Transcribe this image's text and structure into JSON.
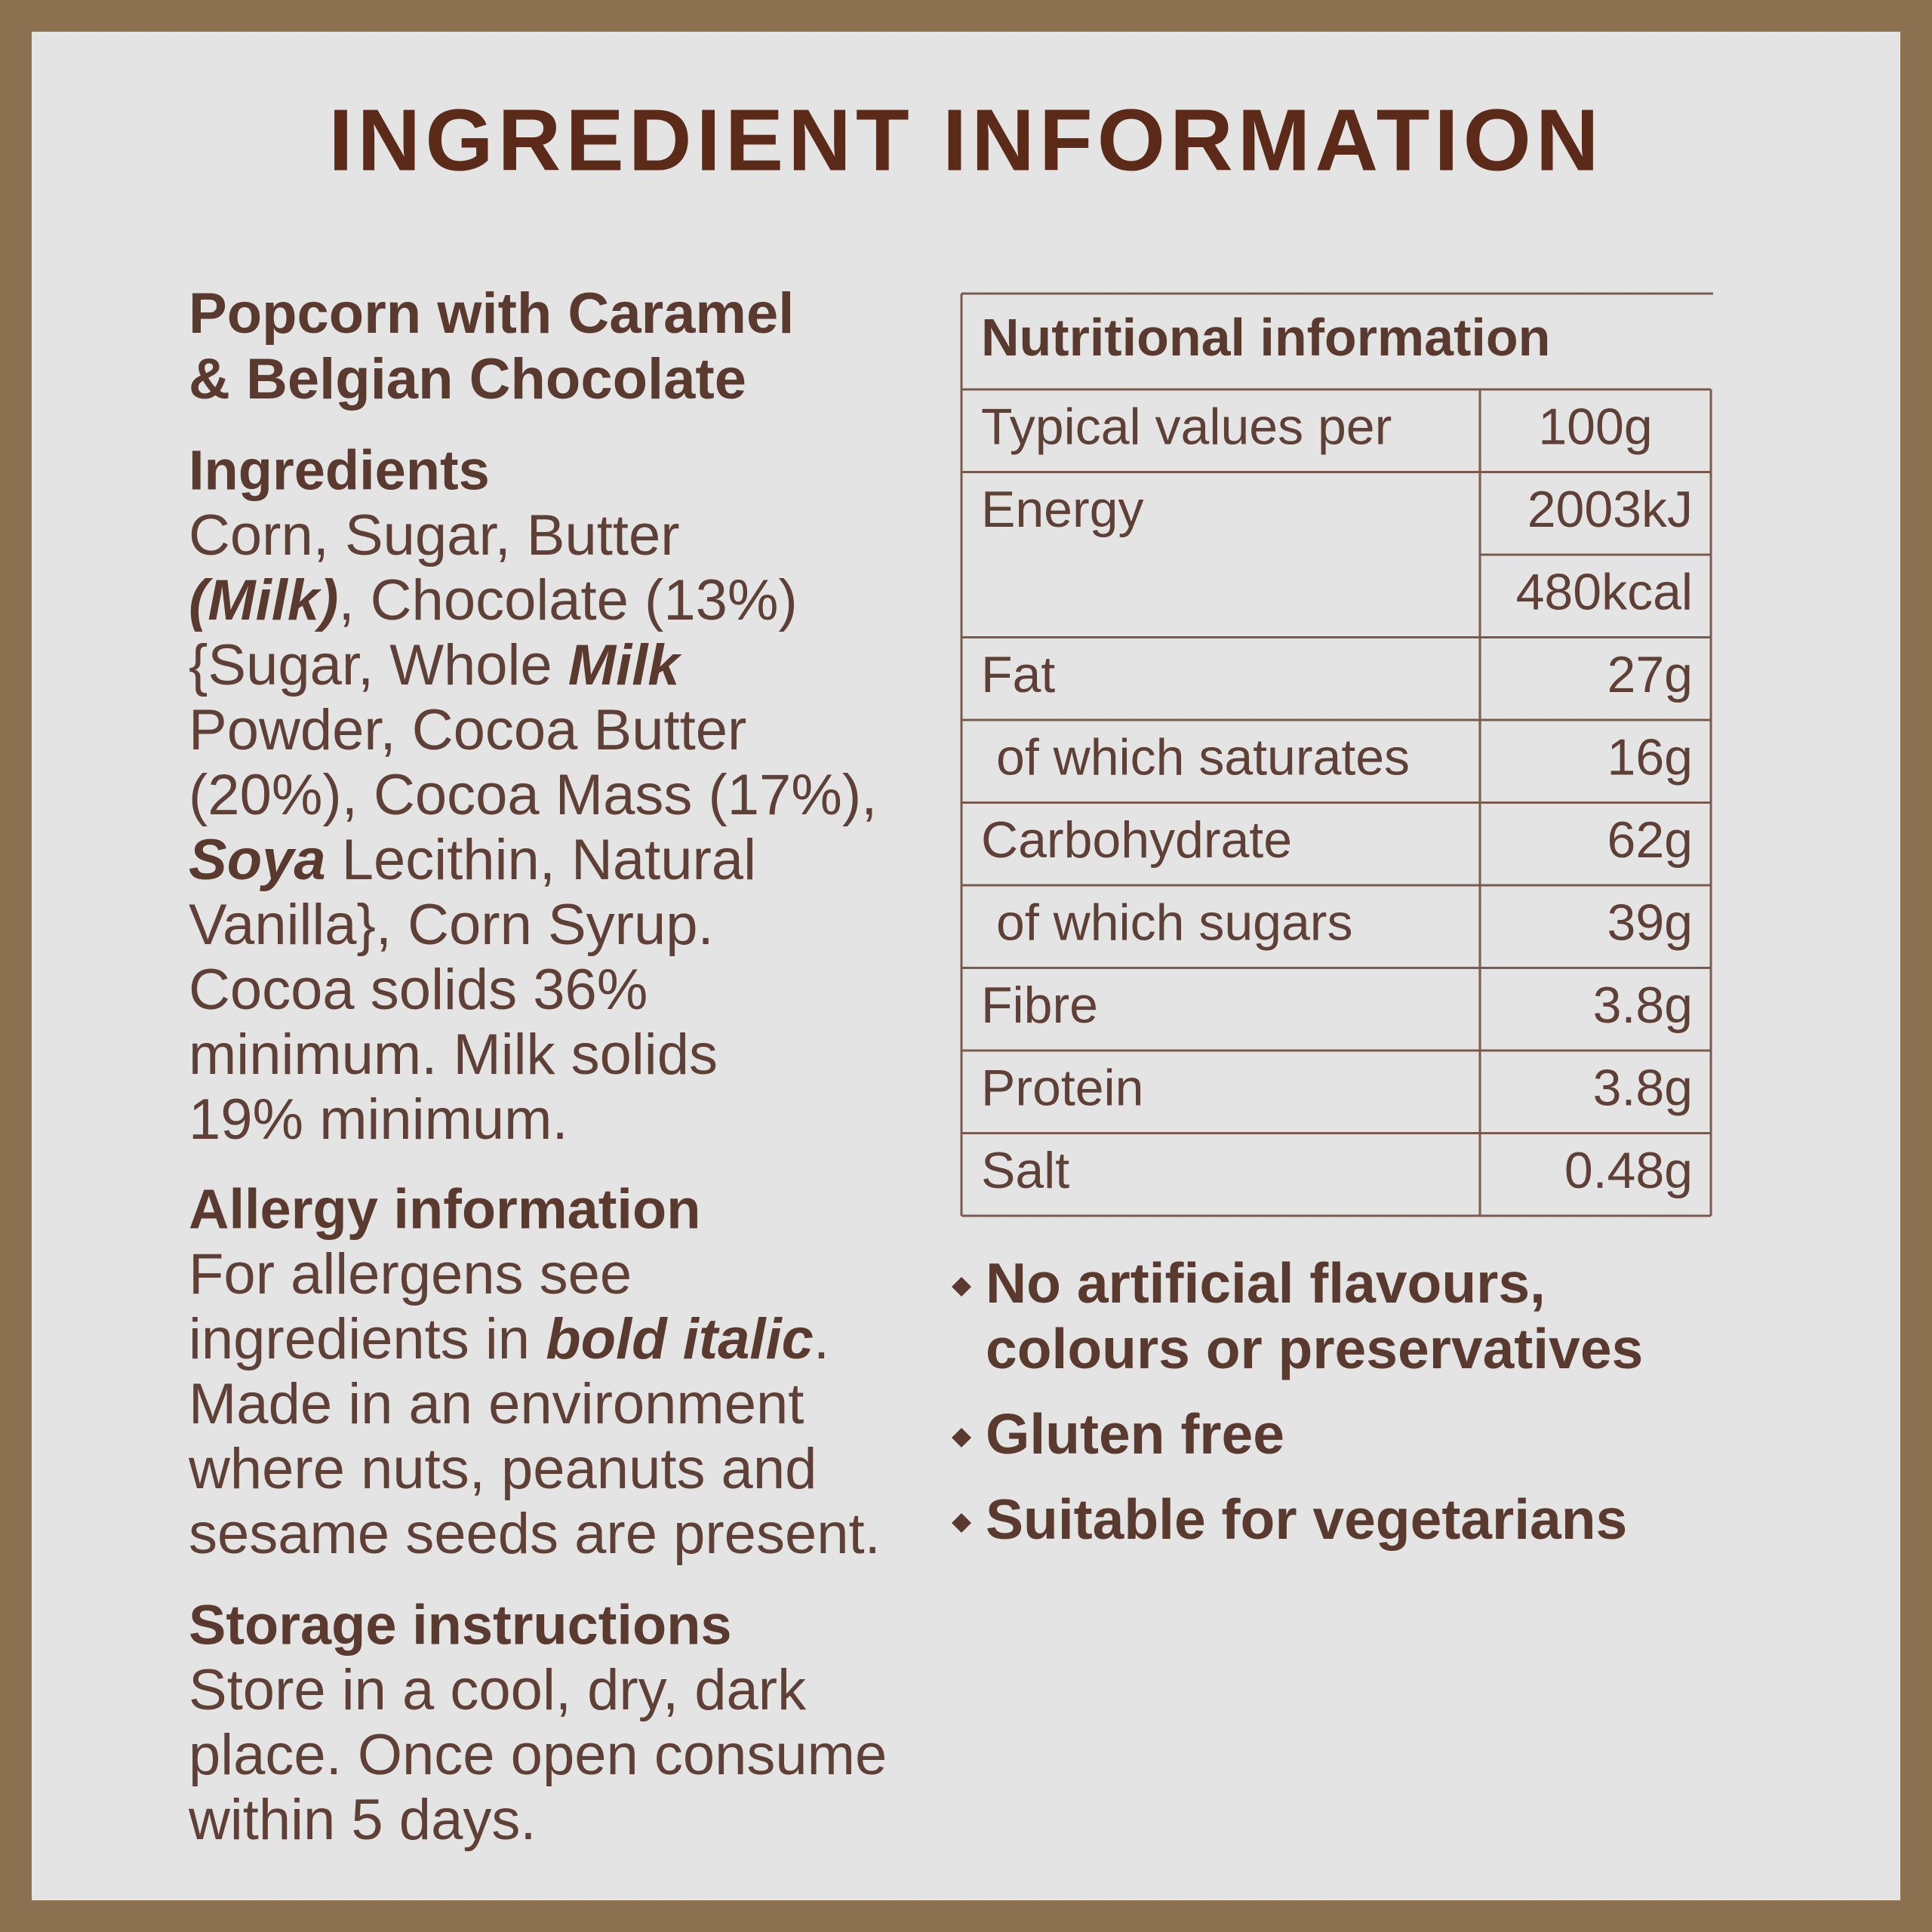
{
  "title": "INGREDIENT INFORMATION",
  "product_name": [
    "Popcorn with Caramel",
    "& Belgian Chocolate"
  ],
  "ingredients": {
    "heading": "Ingredients",
    "lines": [
      [
        "Corn, Sugar, Butter"
      ],
      [
        {
          "text": "(Milk)",
          "style": "bold-italic"
        },
        ", Chocolate (13%)"
      ],
      [
        "{Sugar, Whole ",
        {
          "text": "Milk",
          "style": "bold-italic"
        }
      ],
      [
        "Powder, Cocoa Butter"
      ],
      [
        "(20%), Cocoa Mass (17%),"
      ],
      [
        {
          "text": "Soya",
          "style": "bold-italic"
        },
        " Lecithin, Natural"
      ],
      [
        "Vanilla}, Corn Syrup."
      ],
      [
        "Cocoa solids 36%"
      ],
      [
        "minimum. Milk solids"
      ],
      [
        "19% minimum."
      ]
    ]
  },
  "allergy": {
    "heading": "Allergy information",
    "lines": [
      [
        "For allergens see"
      ],
      [
        "ingredients in ",
        {
          "text": "bold italic",
          "style": "bold-italic"
        },
        "."
      ],
      [
        "Made in an environment"
      ],
      [
        "where nuts, peanuts and"
      ],
      [
        "sesame seeds are present."
      ]
    ]
  },
  "storage": {
    "heading": "Storage instructions",
    "lines": [
      [
        "Store in a cool, dry, dark"
      ],
      [
        "place. Once open consume"
      ],
      [
        "within 5 days."
      ]
    ]
  },
  "nutrition": {
    "title": "Nutritional information",
    "header": [
      "Typical values per",
      "100g"
    ],
    "rows": [
      {
        "label": "Energy",
        "values": [
          "2003kJ",
          "480kcal"
        ]
      },
      {
        "label": "Fat",
        "values": [
          "27g"
        ]
      },
      {
        "label": "of which saturates",
        "values": [
          "16g"
        ],
        "indent": true
      },
      {
        "label": "Carbohydrate",
        "values": [
          "62g"
        ]
      },
      {
        "label": "of which sugars",
        "values": [
          "39g"
        ],
        "indent": true
      },
      {
        "label": "Fibre",
        "values": [
          "3.8g"
        ]
      },
      {
        "label": "Protein",
        "values": [
          "3.8g"
        ]
      },
      {
        "label": "Salt",
        "values": [
          "0.48g"
        ]
      }
    ]
  },
  "claims": [
    [
      "No artificial flavours,",
      "colours or preservatives"
    ],
    [
      "Gluten free"
    ],
    [
      "Suitable for vegetarians"
    ]
  ]
}
